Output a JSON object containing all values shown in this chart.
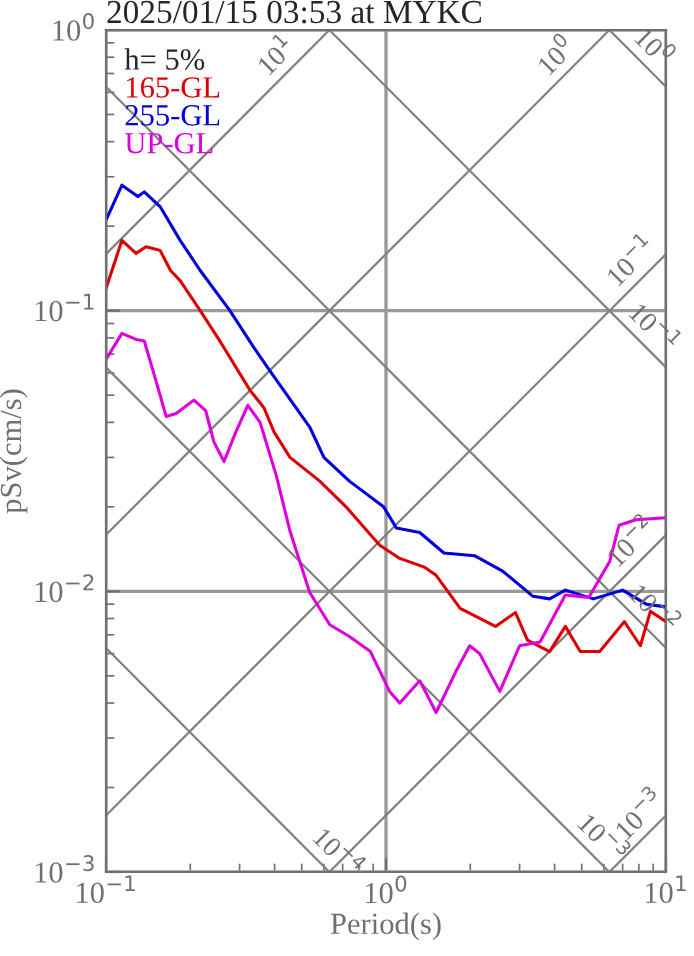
{
  "chart_data": {
    "type": "line",
    "title": "2025/01/15 03:53 at MYKC",
    "xlabel": "Period(s)",
    "ylabel": "pSv(cm/s)",
    "legend_title": "h= 5%",
    "legend": "top left",
    "log": "xy",
    "grid": true,
    "xlim": [
      0.1,
      10
    ],
    "xticks": [
      {
        "value": 0.1,
        "label": "10$^{−1}$"
      },
      {
        "value": 1,
        "label": "10$^{0}$"
      },
      {
        "value": 10,
        "label": "10$^{1}$"
      }
    ],
    "ylim": [
      0.001,
      1
    ],
    "yticks": [
      {
        "value": 0.001,
        "label": "10$^{−3}$"
      },
      {
        "value": 0.01,
        "label": "10$^{−2}$"
      },
      {
        "value": 0.1,
        "label": "10$^{−1}$"
      },
      {
        "value": 1,
        "label": "10$^{0}$"
      }
    ],
    "series": [
      {
        "color": "#808080",
        "x": [
          0.1,
          0.628
        ],
        "values": [
          0.159,
          1
        ]
      },
      {
        "color": "#808080",
        "x": [
          0.1,
          6.28
        ],
        "values": [
          0.0159,
          1
        ]
      },
      {
        "color": "#808080",
        "x": [
          0.1,
          10
        ],
        "values": [
          0.00159,
          0.159
        ]
      },
      {
        "color": "#808080",
        "x": [
          0.628,
          10
        ],
        "values": [
          0.001,
          0.0159
        ]
      },
      {
        "color": "#808080",
        "x": [
          6.28,
          10
        ],
        "values": [
          0.001,
          0.00159
        ]
      },
      {
        "color": "#808080",
        "x": [
          6.28,
          10
        ],
        "values": [
          1,
          0.628
        ]
      },
      {
        "color": "#808080",
        "x": [
          0.628,
          10
        ],
        "values": [
          1,
          0.0628
        ]
      },
      {
        "color": "#808080",
        "x": [
          0.1,
          10
        ],
        "values": [
          0.628,
          0.00628
        ]
      },
      {
        "color": "#808080",
        "x": [
          0.1,
          6.28
        ],
        "values": [
          0.0628,
          0.001
        ]
      },
      {
        "color": "#808080",
        "x": [
          0.1,
          0.628
        ],
        "values": [
          0.00628,
          0.001
        ]
      },
      {
        "name": "165-GL",
        "color": "#dd0000",
        "x": [
          0.1,
          0.114,
          0.128,
          0.139,
          0.156,
          0.17,
          0.184,
          0.217,
          0.255,
          0.327,
          0.367,
          0.398,
          0.454,
          0.58,
          0.72,
          0.95,
          1.12,
          1.37,
          1.51,
          1.84,
          2.46,
          2.9,
          3.2,
          3.84,
          4.37,
          4.94,
          5.8,
          7.1,
          8.1,
          8.8,
          10
        ],
        "values": [
          0.12,
          0.178,
          0.16,
          0.169,
          0.164,
          0.139,
          0.128,
          0.1,
          0.078,
          0.052,
          0.045,
          0.037,
          0.03,
          0.0247,
          0.02,
          0.0146,
          0.0131,
          0.0122,
          0.0114,
          0.0087,
          0.0075,
          0.0084,
          0.0067,
          0.0061,
          0.0075,
          0.0061,
          0.0061,
          0.0078,
          0.0064,
          0.0085,
          0.0078
        ]
      },
      {
        "name": "255-GL",
        "color": "#0000dd",
        "x": [
          0.1,
          0.114,
          0.13,
          0.137,
          0.156,
          0.184,
          0.217,
          0.277,
          0.337,
          0.385,
          0.534,
          0.6,
          0.74,
          0.98,
          1.09,
          1.32,
          1.61,
          2.07,
          2.61,
          3.35,
          3.84,
          4.37,
          5.5,
          7.0,
          8.5,
          10
        ],
        "values": [
          0.21,
          0.28,
          0.255,
          0.265,
          0.235,
          0.178,
          0.139,
          0.1,
          0.074,
          0.061,
          0.0385,
          0.03,
          0.0247,
          0.02,
          0.0168,
          0.0162,
          0.0137,
          0.0134,
          0.0118,
          0.0096,
          0.0094,
          0.0101,
          0.0094,
          0.0101,
          0.009,
          0.0088
        ]
      },
      {
        "name": "UP-GL",
        "color": "#dd00dd",
        "x": [
          0.1,
          0.114,
          0.128,
          0.137,
          0.151,
          0.164,
          0.178,
          0.206,
          0.227,
          0.243,
          0.264,
          0.291,
          0.321,
          0.355,
          0.405,
          0.454,
          0.534,
          0.63,
          0.74,
          0.88,
          1.03,
          1.12,
          1.32,
          1.51,
          1.78,
          1.99,
          2.16,
          2.55,
          3.0,
          3.55,
          4.37,
          5.3,
          6.3,
          6.8,
          7.8,
          10
        ],
        "values": [
          0.067,
          0.083,
          0.079,
          0.078,
          0.056,
          0.042,
          0.043,
          0.048,
          0.044,
          0.034,
          0.029,
          0.037,
          0.046,
          0.04,
          0.026,
          0.0164,
          0.0099,
          0.0076,
          0.0069,
          0.0061,
          0.0044,
          0.004,
          0.0048,
          0.0037,
          0.0052,
          0.0064,
          0.006,
          0.0044,
          0.0064,
          0.0066,
          0.0097,
          0.0095,
          0.0128,
          0.0172,
          0.018,
          0.0183
        ]
      }
    ],
    "annotations": [
      {
        "text": "10$^{1}$",
        "x": 0.454,
        "y": 0.723
      },
      {
        "text": "10$^{0}$",
        "x": 4.54,
        "y": 0.723
      },
      {
        "text": "10$^{0}$",
        "x": 8.07,
        "y": 0.778
      },
      {
        "text": "10$^{−1}$",
        "x": 8.4,
        "y": 0.134
      },
      {
        "text": "10$^{−1}$",
        "x": 8.07,
        "y": 0.0778
      },
      {
        "text": "10$^{−2}$",
        "x": 8.4,
        "y": 0.0134
      },
      {
        "text": "10$^{−2}$",
        "x": 8.07,
        "y": 0.00778
      },
      {
        "text": "10$^{−3}$",
        "x": 9.0,
        "y": 0.00143
      },
      {
        "text": "10$^{−3}$",
        "x": 5.3,
        "y": 0.00118
      },
      {
        "text": "10$^{−4}$",
        "x": 0.6,
        "y": 0.00105
      }
    ]
  }
}
